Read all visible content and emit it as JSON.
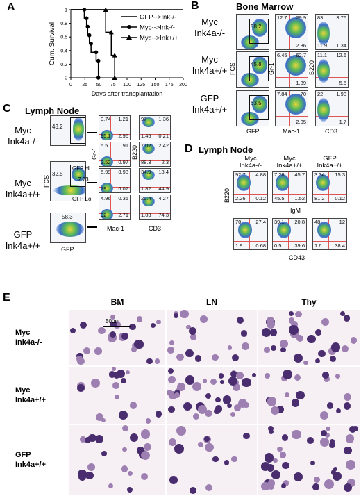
{
  "panel_a": {
    "label": "A",
    "ylabel": "Cum. Survival",
    "xlabel": "Days after transplantation",
    "xticks": [
      "0",
      "25",
      "50",
      "75",
      "100",
      "125",
      "150",
      "175",
      "200"
    ],
    "yticks": [
      "0",
      "0.2",
      "0.4",
      "0.6",
      "0.8",
      "1"
    ],
    "legend": [
      "GFP-->Ink-/-",
      "Myc-->Ink-/-",
      "Myc-->Ink+/+"
    ],
    "chart_data": {
      "type": "line",
      "xlim": [
        0,
        200
      ],
      "ylim": [
        0,
        1
      ],
      "series": [
        {
          "name": "GFP-->Ink-/-",
          "x": [
            0,
            200
          ],
          "y": [
            1,
            1
          ]
        },
        {
          "name": "Myc-->Ink-/-",
          "x": [
            0,
            24,
            24,
            28,
            28,
            30,
            30,
            33,
            33,
            36,
            36,
            45,
            45,
            49,
            49
          ],
          "y": [
            1,
            1,
            0.875,
            0.875,
            0.75,
            0.75,
            0.625,
            0.625,
            0.5,
            0.5,
            0.375,
            0.375,
            0.25,
            0.25,
            0
          ]
        },
        {
          "name": "Myc-->Ink+/+",
          "x": [
            0,
            62,
            62,
            72,
            72,
            78,
            78
          ],
          "y": [
            1,
            1,
            0.67,
            0.67,
            0.33,
            0.33,
            0
          ]
        }
      ]
    }
  },
  "panel_b": {
    "label": "B",
    "title": "Bone Marrow",
    "rows": [
      {
        "l1": "Myc",
        "l2": "Ink4a-/-"
      },
      {
        "l1": "Myc",
        "l2": "Ink4a+/+"
      },
      {
        "l1": "GFP",
        "l2": "Ink4a+/+"
      }
    ],
    "col1": {
      "x": "GFP",
      "y": "FCS",
      "vals": [
        "58.2",
        "45.8",
        "63.5"
      ]
    },
    "col2": {
      "x": "Mac-1",
      "y": "Gr-1",
      "vals": [
        [
          "12.7",
          "29.9",
          "",
          "2.36"
        ],
        [
          "6.45",
          "62.7",
          "",
          "1.39"
        ],
        [
          "7.84",
          "70",
          "",
          "2.05"
        ]
      ]
    },
    "col3": {
      "x": "CD3",
      "y": "B220",
      "vals": [
        [
          "83",
          "3.76",
          "11.9",
          "1.34"
        ],
        [
          "11.1",
          "12.6",
          "",
          "5.5"
        ],
        [
          "22",
          "1.93",
          "",
          "1.7"
        ]
      ]
    }
  },
  "panel_c": {
    "label": "C",
    "title": "Lymph Node",
    "rows": [
      {
        "l1": "Myc",
        "l2": "Ink4a-/-"
      },
      {
        "l1": "Myc",
        "l2": "Ink4a+/+"
      },
      {
        "l1": "GFP",
        "l2": "Ink4a+/+"
      }
    ],
    "col1": {
      "x": "GFP",
      "y": "FCS",
      "vals": [
        "43.2",
        "32.5",
        "58.3"
      ],
      "extra": "7.73",
      "gfp_hi": "GFP Hi",
      "gfp_lo": "GFP Lo"
    },
    "col2": {
      "x": "Mac-1",
      "y": "Gr-1",
      "vals": [
        [
          "0.74",
          "1.21",
          "95.1",
          "2.96"
        ],
        [
          "5.5",
          "91",
          "2.52",
          "0.97"
        ],
        [
          "5.99",
          "8.93",
          "79",
          "6.07"
        ],
        [
          "4.96",
          "0.35",
          "92",
          "2.71"
        ]
      ]
    },
    "col3": {
      "x": "CD3",
      "y": "B220",
      "vals": [
        [
          "97",
          "1.36",
          "1.45",
          "0.21"
        ],
        [
          "7.02",
          "2.42",
          "88.3",
          "2.3"
        ],
        [
          "34.9",
          "18.4",
          "1.82",
          "44.9"
        ],
        [
          "20.4",
          "4.27",
          "1.03",
          "74.3"
        ]
      ]
    }
  },
  "panel_d": {
    "label": "D",
    "title": "Lymph Node",
    "cols": [
      {
        "l1": "Myc",
        "l2": "Ink4a-/-"
      },
      {
        "l1": "Myc",
        "l2": "Ink4a+/+"
      },
      {
        "l1": "GFP",
        "l2": "Ink4a+/+"
      }
    ],
    "row1": {
      "x": "IgM",
      "y": "B220",
      "vals": [
        [
          "92.7",
          "4.88",
          "2.26",
          "0.12"
        ],
        [
          "7.28",
          "45.7",
          "45.5",
          "1.52"
        ],
        [
          "3.34",
          "15.3",
          "81.2",
          "0.12"
        ]
      ]
    },
    "row2": {
      "x": "CD43",
      "y": "",
      "vals": [
        [
          "70",
          "27.4",
          "1.9",
          "0.68"
        ],
        [
          "39.1",
          "20.8",
          "0.5",
          "39.6"
        ],
        [
          "48",
          "12",
          "1.6",
          "38.4"
        ]
      ]
    }
  },
  "panel_e": {
    "label": "E",
    "cols": [
      "BM",
      "LN",
      "Thy"
    ],
    "rows": [
      {
        "l1": "Myc",
        "l2": "Ink4a-/-"
      },
      {
        "l1": "Myc",
        "l2": "Ink4a+/+"
      },
      {
        "l1": "GFP",
        "l2": "Ink4a+/+"
      }
    ],
    "scale": "50μm"
  }
}
